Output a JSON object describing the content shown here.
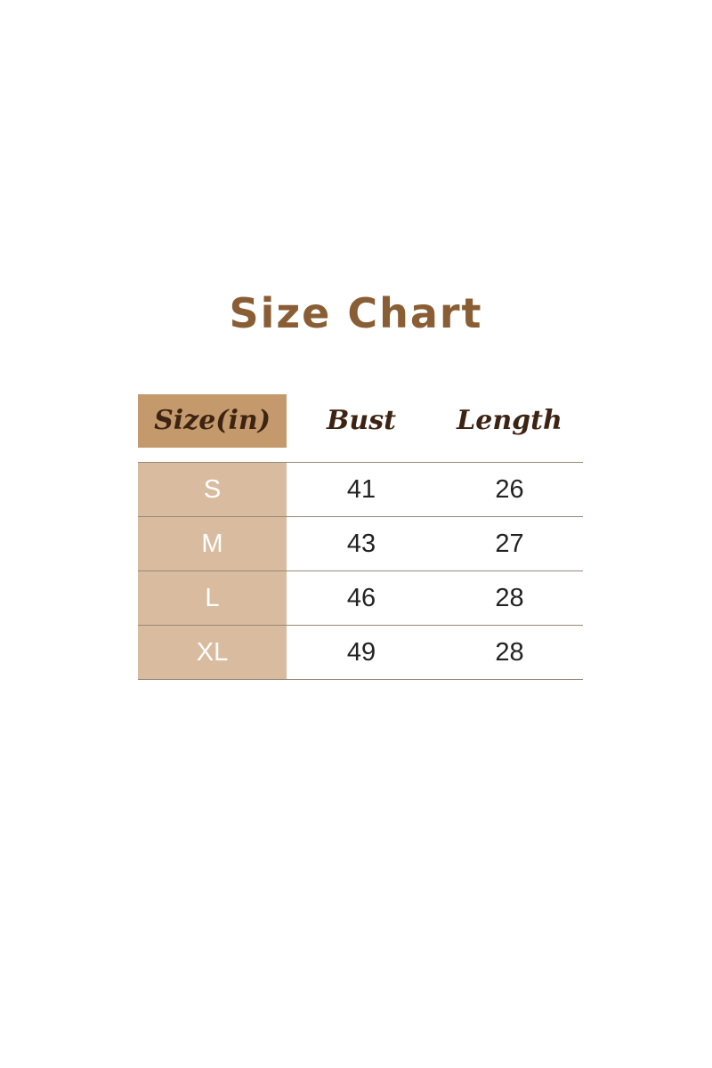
{
  "title": "Size Chart",
  "colors": {
    "title": "#8a5e35",
    "header_cell": "#c49a6c",
    "size_column": "#d9bc9f",
    "header_text": "#3d2412"
  },
  "headers": [
    "Size(in)",
    "Bust",
    "Length"
  ],
  "rows": [
    [
      "S",
      "41",
      "26"
    ],
    [
      "M",
      "43",
      "27"
    ],
    [
      "L",
      "46",
      "28"
    ],
    [
      "XL",
      "49",
      "28"
    ]
  ]
}
